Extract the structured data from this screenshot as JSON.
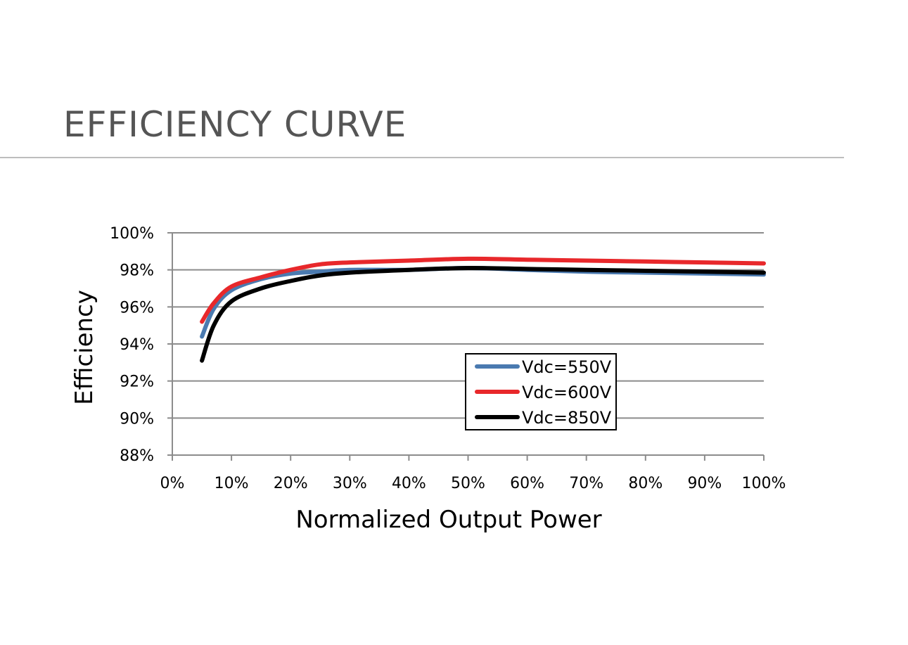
{
  "header": {
    "title": "EFFICIENCY CURVE"
  },
  "chart_data": {
    "type": "line",
    "xlabel": "Normalized Output Power",
    "ylabel": "Efficiency",
    "xlim": [
      0,
      100
    ],
    "ylim": [
      88,
      100
    ],
    "xticks": [
      0,
      10,
      20,
      30,
      40,
      50,
      60,
      70,
      80,
      90,
      100
    ],
    "yticks": [
      88,
      90,
      92,
      94,
      96,
      98,
      100
    ],
    "xtick_labels": [
      "0%",
      "10%",
      "20%",
      "30%",
      "40%",
      "50%",
      "60%",
      "70%",
      "80%",
      "90%",
      "100%"
    ],
    "ytick_labels": [
      "88%",
      "90%",
      "92%",
      "94%",
      "96%",
      "98%",
      "100%"
    ],
    "grid": "horizontal",
    "legend_position": "center-right",
    "series": [
      {
        "name": "Vdc=550V",
        "color": "#4a7ab0",
        "x": [
          5,
          7,
          10,
          15,
          20,
          25,
          30,
          40,
          50,
          60,
          70,
          80,
          90,
          100
        ],
        "values": [
          94.4,
          95.9,
          96.9,
          97.5,
          97.8,
          97.9,
          98.0,
          98.0,
          98.1,
          98.0,
          97.9,
          97.85,
          97.8,
          97.75
        ]
      },
      {
        "name": "Vdc=600V",
        "color": "#e8282b",
        "x": [
          5,
          7,
          10,
          15,
          20,
          25,
          30,
          40,
          50,
          60,
          70,
          80,
          90,
          100
        ],
        "values": [
          95.2,
          96.2,
          97.1,
          97.6,
          98.0,
          98.3,
          98.4,
          98.5,
          98.6,
          98.55,
          98.5,
          98.45,
          98.4,
          98.35
        ]
      },
      {
        "name": "Vdc=850V",
        "color": "#000000",
        "x": [
          5,
          7,
          10,
          15,
          20,
          25,
          30,
          40,
          50,
          60,
          70,
          80,
          90,
          100
        ],
        "values": [
          93.1,
          95.0,
          96.3,
          97.0,
          97.4,
          97.7,
          97.85,
          98.0,
          98.1,
          98.05,
          98.0,
          97.95,
          97.9,
          97.85
        ]
      }
    ]
  }
}
